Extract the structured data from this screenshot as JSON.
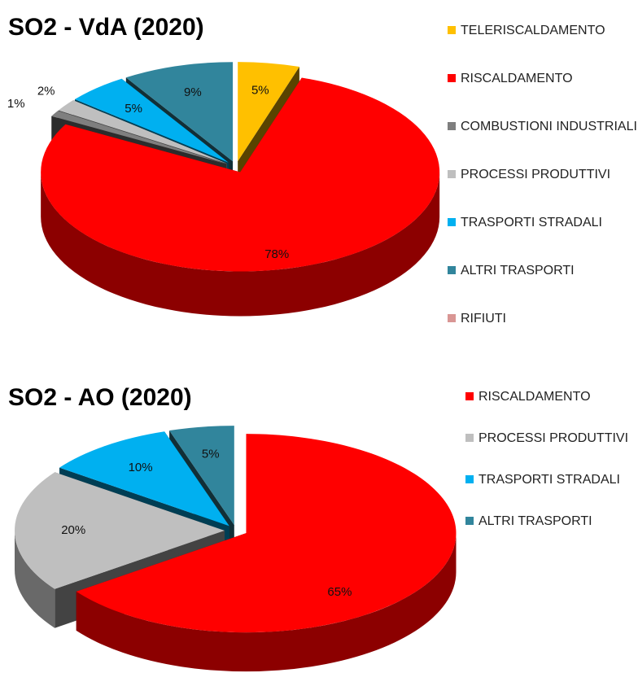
{
  "chart_data": [
    {
      "type": "pie",
      "title": "SO2 - VdA (2020)",
      "categories": [
        "TELERISCALDAMENTO",
        "RISCALDAMENTO",
        "COMBUSTIONI INDUSTRIALI",
        "PROCESSI PRODUTTIVI",
        "TRASPORTI STRADALI",
        "ALTRI TRASPORTI",
        "RIFIUTI"
      ],
      "values": [
        5,
        78,
        1,
        2,
        5,
        9,
        0
      ],
      "value_labels": [
        "5%",
        "78%",
        "1%",
        "2%",
        "5%",
        "9%",
        null
      ],
      "colors": [
        "#ffc000",
        "#ff0000",
        "#7f7f7f",
        "#bfbfbf",
        "#00b0f0",
        "#31859c",
        "#d99694"
      ]
    },
    {
      "type": "pie",
      "title": "SO2 - AO (2020)",
      "categories": [
        "RISCALDAMENTO",
        "PROCESSI PRODUTTIVI",
        "TRASPORTI STRADALI",
        "ALTRI TRASPORTI"
      ],
      "values": [
        65,
        20,
        10,
        5
      ],
      "value_labels": [
        "65%",
        "20%",
        "10%",
        "5%"
      ],
      "colors": [
        "#ff0000",
        "#bfbfbf",
        "#00b0f0",
        "#31859c"
      ]
    }
  ]
}
